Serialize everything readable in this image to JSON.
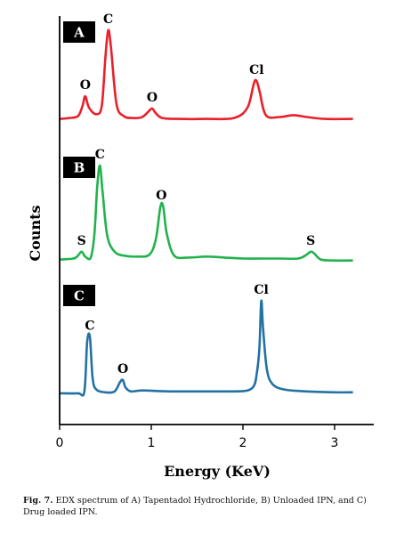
{
  "chart_data": {
    "type": "line",
    "xlabel": "Energy (KeV)",
    "ylabel": "Counts",
    "xlim": [
      0,
      3.2
    ],
    "x_ticks": [
      0,
      1,
      2,
      3
    ],
    "panels": [
      {
        "label": "A",
        "color": "#e8202a",
        "series": [
          {
            "x": [
              0.0,
              0.1,
              0.2,
              0.25,
              0.28,
              0.32,
              0.4,
              0.46,
              0.5,
              0.53,
              0.56,
              0.62,
              0.7,
              0.8,
              0.9,
              0.97,
              1.01,
              1.05,
              1.12,
              1.3,
              1.6,
              1.9,
              2.05,
              2.12,
              2.15,
              2.18,
              2.25,
              2.4,
              2.55,
              2.7,
              2.9,
              3.2
            ],
            "y": [
              0.06,
              0.07,
              0.09,
              0.2,
              0.3,
              0.18,
              0.11,
              0.2,
              0.72,
              1.0,
              0.82,
              0.22,
              0.09,
              0.07,
              0.08,
              0.14,
              0.17,
              0.12,
              0.07,
              0.06,
              0.06,
              0.07,
              0.18,
              0.44,
              0.46,
              0.36,
              0.1,
              0.08,
              0.1,
              0.08,
              0.06,
              0.06
            ]
          }
        ],
        "peaks": [
          {
            "label": "C",
            "x": 0.53,
            "y": 1.0
          },
          {
            "label": "O",
            "x": 0.28,
            "y": 0.3
          },
          {
            "label": "O",
            "x": 1.01,
            "y": 0.17
          },
          {
            "label": "Cl",
            "x": 2.15,
            "y": 0.46
          }
        ]
      },
      {
        "label": "B",
        "color": "#22b24c",
        "series": [
          {
            "x": [
              0.0,
              0.15,
              0.2,
              0.24,
              0.28,
              0.34,
              0.38,
              0.41,
              0.44,
              0.47,
              0.52,
              0.6,
              0.7,
              0.85,
              0.98,
              1.05,
              1.1,
              1.13,
              1.17,
              1.25,
              1.4,
              1.6,
              1.8,
              2.0,
              2.2,
              2.4,
              2.6,
              2.68,
              2.74,
              2.78,
              2.85,
              3.0,
              3.2
            ],
            "y": [
              0.04,
              0.05,
              0.08,
              0.12,
              0.07,
              0.06,
              0.3,
              0.78,
              1.0,
              0.72,
              0.28,
              0.12,
              0.08,
              0.07,
              0.09,
              0.25,
              0.58,
              0.58,
              0.3,
              0.08,
              0.06,
              0.07,
              0.06,
              0.05,
              0.05,
              0.05,
              0.05,
              0.08,
              0.12,
              0.1,
              0.04,
              0.03,
              0.03
            ]
          }
        ],
        "peaks": [
          {
            "label": "C",
            "x": 0.44,
            "y": 1.0
          },
          {
            "label": "S",
            "x": 0.24,
            "y": 0.12
          },
          {
            "label": "O",
            "x": 1.11,
            "y": 0.58
          },
          {
            "label": "S",
            "x": 2.74,
            "y": 0.12
          }
        ]
      },
      {
        "label": "C",
        "color": "#2471a3",
        "series": [
          {
            "x": [
              0.0,
              0.2,
              0.27,
              0.3,
              0.33,
              0.36,
              0.4,
              0.5,
              0.6,
              0.66,
              0.69,
              0.72,
              0.78,
              0.9,
              1.2,
              1.6,
              1.9,
              2.05,
              2.12,
              2.15,
              2.18,
              2.2,
              2.22,
              2.26,
              2.32,
              2.45,
              2.7,
              3.0,
              3.2
            ],
            "y": [
              0.02,
              0.02,
              0.04,
              0.56,
              0.62,
              0.18,
              0.06,
              0.03,
              0.04,
              0.14,
              0.16,
              0.08,
              0.04,
              0.05,
              0.04,
              0.04,
              0.04,
              0.05,
              0.1,
              0.22,
              0.5,
              1.0,
              0.7,
              0.28,
              0.12,
              0.06,
              0.04,
              0.03,
              0.03
            ]
          }
        ],
        "peaks": [
          {
            "label": "Cl",
            "x": 2.2,
            "y": 1.0
          },
          {
            "label": "C",
            "x": 0.33,
            "y": 0.62
          },
          {
            "label": "O",
            "x": 0.69,
            "y": 0.16
          }
        ]
      }
    ]
  },
  "caption": {
    "figure_label": "Fig. 7.",
    "text": "EDX spectrum of A) Tapentadol Hydrochloride, B) Unloaded IPN, and C) Drug loaded IPN."
  }
}
